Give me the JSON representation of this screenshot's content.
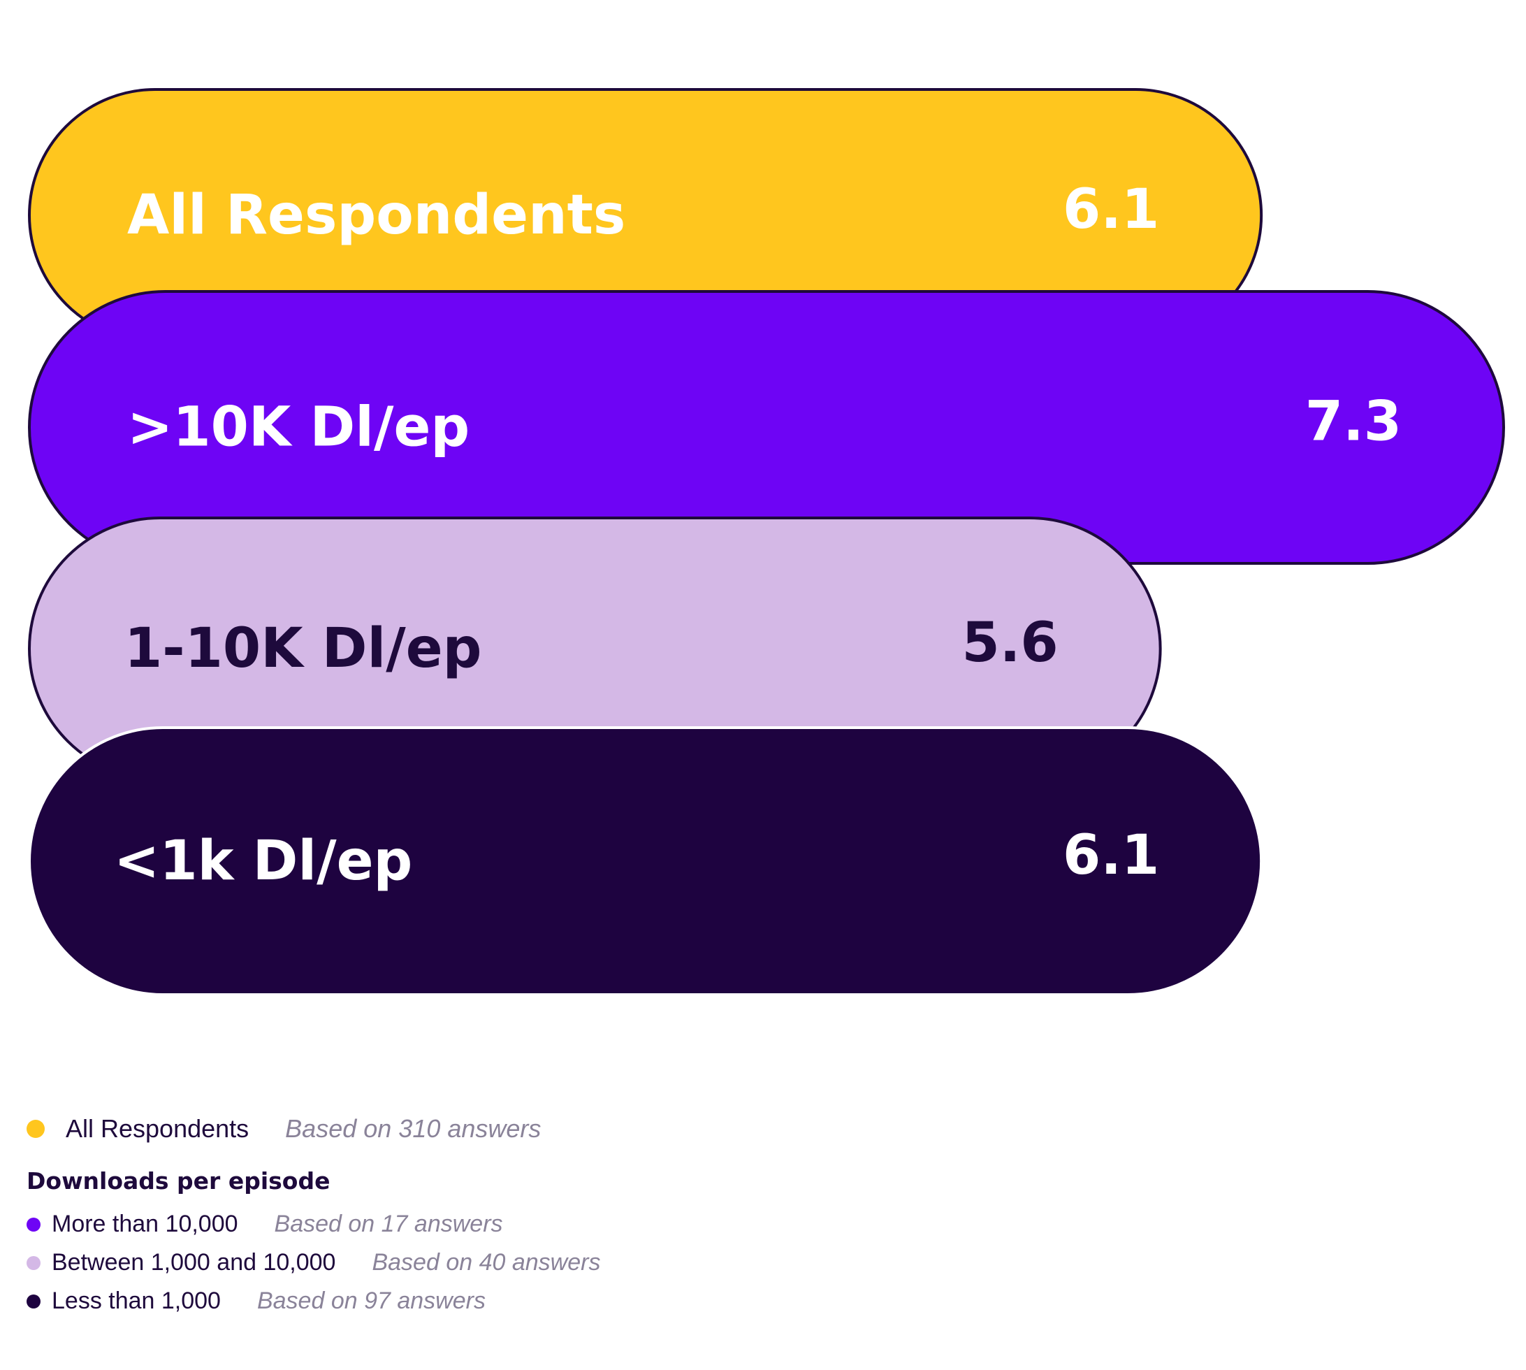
{
  "chart_data": {
    "type": "bar",
    "orientation": "horizontal",
    "categories": [
      "All Respondents",
      ">10K Dl/ep",
      "1-10K Dl/ep",
      "<1k Dl/ep"
    ],
    "values": [
      6.1,
      7.3,
      5.6,
      6.1
    ],
    "value_labels": [
      "6.1",
      "7.3",
      "5.6",
      "6.1"
    ],
    "colors": [
      "#ffc61e",
      "#6e04f5",
      "#d4b8e6",
      "#1e0340"
    ],
    "label_colors": [
      "#ffffff",
      "#ffffff",
      "#1e0a3c",
      "#ffffff"
    ],
    "title": "",
    "xlabel": "",
    "ylabel": "",
    "grid": false,
    "legend_position": "bottom-left"
  },
  "legend": {
    "all": {
      "label": "All Respondents",
      "note": "Based on 310 answers",
      "color": "#ffc61e"
    },
    "heading": "Downloads per episode",
    "items": [
      {
        "label": "More than 10,000",
        "note": "Based on 17 answers",
        "color": "#6e04f5"
      },
      {
        "label": "Between 1,000 and 10,000",
        "note": "Based on 40 answers",
        "color": "#d4b8e6"
      },
      {
        "label": "Less than 1,000",
        "note": "Based on 97 answers",
        "color": "#1e0340"
      }
    ]
  }
}
